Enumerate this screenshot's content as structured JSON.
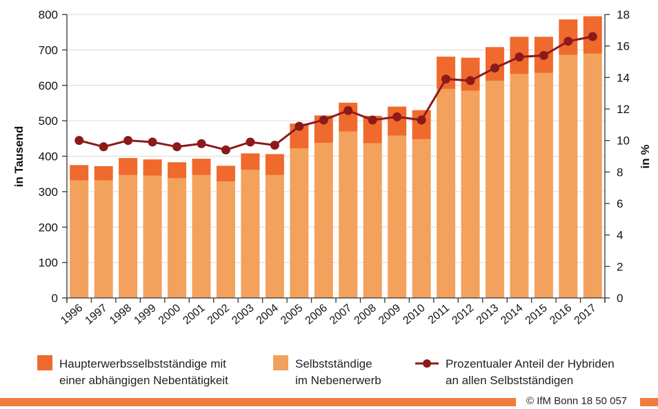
{
  "chart_data": {
    "type": "bar",
    "categories": [
      "1996",
      "1997",
      "1998",
      "1999",
      "2000",
      "2001",
      "2002",
      "2003",
      "2004",
      "2005",
      "2006",
      "2007",
      "2008",
      "2009",
      "2010",
      "2011",
      "2012",
      "2013",
      "2014",
      "2015",
      "2016",
      "2017"
    ],
    "series": [
      {
        "name": "Selbstständige im Nebenerwerb",
        "type": "bar-stacked",
        "axis": "left",
        "color": "#f2a25c",
        "values": [
          332,
          332,
          347,
          345,
          338,
          347,
          329,
          362,
          347,
          422,
          438,
          470,
          437,
          458,
          448,
          590,
          585,
          613,
          632,
          635,
          686,
          690
        ]
      },
      {
        "name": "Haupterwerbsselbstständige mit einer abhängigen Nebentätigkeit",
        "type": "bar-stacked",
        "axis": "left",
        "color": "#ef6a2c",
        "values": [
          43,
          40,
          48,
          46,
          45,
          46,
          44,
          46,
          59,
          70,
          77,
          81,
          77,
          82,
          82,
          91,
          93,
          95,
          105,
          102,
          100,
          105
        ]
      },
      {
        "name": "Prozentualer Anteil der Hybriden an allen Selbstständigen",
        "type": "line",
        "axis": "right",
        "color": "#8b1a1a",
        "values": [
          10.0,
          9.6,
          10.0,
          9.9,
          9.6,
          9.8,
          9.4,
          9.9,
          9.7,
          10.9,
          11.3,
          11.9,
          11.3,
          11.5,
          11.3,
          13.9,
          13.8,
          14.6,
          15.3,
          15.4,
          16.3,
          16.6
        ]
      }
    ],
    "ylabel": "in Tausend",
    "ylim": [
      0,
      800
    ],
    "yticks": [
      "0",
      "100",
      "200",
      "300",
      "400",
      "500",
      "600",
      "700",
      "800"
    ],
    "y2label": "in %",
    "y2lim": [
      0,
      18
    ],
    "y2ticks": [
      "0",
      "2",
      "4",
      "6",
      "8",
      "10",
      "12",
      "14",
      "16",
      "18"
    ],
    "legend_position": "bottom",
    "legend": [
      {
        "line1": "Haupterwerbsselbstständige mit",
        "line2": "einer abhängigen Nebentätigkeit",
        "color": "#ef6a2c",
        "marker": "square"
      },
      {
        "line1": "Selbstständige",
        "line2": "im Nebenerwerb",
        "color": "#f2a25c",
        "marker": "square"
      },
      {
        "line1": "Prozentualer Anteil der Hybriden",
        "line2": "an allen Selbstständigen",
        "color": "#8b1a1a",
        "marker": "line-dot"
      }
    ]
  },
  "footer": {
    "copyright": "© IfM Bonn 18 50 057",
    "bar_color": "#f07c3c"
  }
}
